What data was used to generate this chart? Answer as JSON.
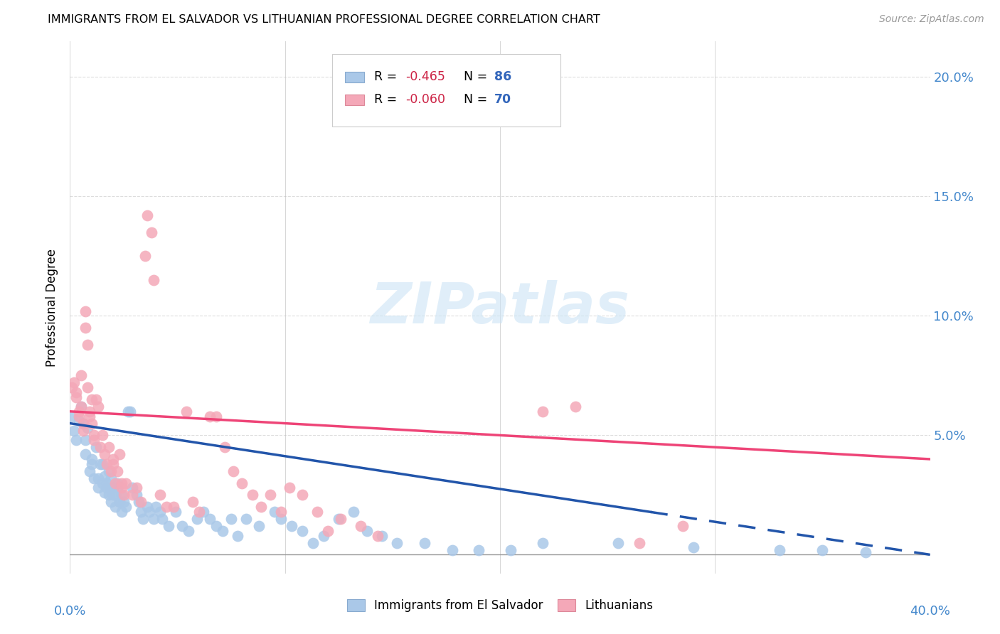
{
  "title": "IMMIGRANTS FROM EL SALVADOR VS LITHUANIAN PROFESSIONAL DEGREE CORRELATION CHART",
  "source": "Source: ZipAtlas.com",
  "ylabel": "Professional Degree",
  "legend_label1": "Immigrants from El Salvador",
  "legend_label2": "Lithuanians",
  "watermark": "ZIPatlas",
  "ytick_labels": [
    "",
    "5.0%",
    "10.0%",
    "15.0%",
    "20.0%"
  ],
  "yticks": [
    0.0,
    0.05,
    0.1,
    0.15,
    0.2
  ],
  "xmin": 0.0,
  "xmax": 0.4,
  "ymin": -0.008,
  "ymax": 0.215,
  "blue_color": "#aac8e8",
  "pink_color": "#f4a8b8",
  "blue_line_color": "#2255aa",
  "pink_line_color": "#ee4477",
  "axis_label_color": "#4488cc",
  "grid_color": "#dddddd",
  "blue_scatter": [
    [
      0.001,
      0.058
    ],
    [
      0.002,
      0.052
    ],
    [
      0.003,
      0.048
    ],
    [
      0.004,
      0.056
    ],
    [
      0.005,
      0.062
    ],
    [
      0.006,
      0.055
    ],
    [
      0.007,
      0.048
    ],
    [
      0.007,
      0.042
    ],
    [
      0.008,
      0.053
    ],
    [
      0.009,
      0.035
    ],
    [
      0.01,
      0.04
    ],
    [
      0.01,
      0.038
    ],
    [
      0.011,
      0.032
    ],
    [
      0.012,
      0.045
    ],
    [
      0.013,
      0.032
    ],
    [
      0.013,
      0.028
    ],
    [
      0.014,
      0.038
    ],
    [
      0.015,
      0.03
    ],
    [
      0.015,
      0.038
    ],
    [
      0.016,
      0.026
    ],
    [
      0.016,
      0.033
    ],
    [
      0.017,
      0.028
    ],
    [
      0.017,
      0.03
    ],
    [
      0.018,
      0.035
    ],
    [
      0.018,
      0.025
    ],
    [
      0.019,
      0.032
    ],
    [
      0.019,
      0.022
    ],
    [
      0.02,
      0.028
    ],
    [
      0.02,
      0.025
    ],
    [
      0.021,
      0.025
    ],
    [
      0.021,
      0.02
    ],
    [
      0.022,
      0.03
    ],
    [
      0.022,
      0.028
    ],
    [
      0.023,
      0.022
    ],
    [
      0.023,
      0.022
    ],
    [
      0.024,
      0.025
    ],
    [
      0.024,
      0.018
    ],
    [
      0.025,
      0.022
    ],
    [
      0.026,
      0.02
    ],
    [
      0.027,
      0.06
    ],
    [
      0.028,
      0.06
    ],
    [
      0.029,
      0.028
    ],
    [
      0.031,
      0.025
    ],
    [
      0.032,
      0.022
    ],
    [
      0.033,
      0.018
    ],
    [
      0.034,
      0.015
    ],
    [
      0.036,
      0.02
    ],
    [
      0.037,
      0.018
    ],
    [
      0.039,
      0.015
    ],
    [
      0.04,
      0.02
    ],
    [
      0.042,
      0.018
    ],
    [
      0.043,
      0.015
    ],
    [
      0.046,
      0.012
    ],
    [
      0.049,
      0.018
    ],
    [
      0.052,
      0.012
    ],
    [
      0.055,
      0.01
    ],
    [
      0.059,
      0.015
    ],
    [
      0.062,
      0.018
    ],
    [
      0.065,
      0.015
    ],
    [
      0.068,
      0.012
    ],
    [
      0.071,
      0.01
    ],
    [
      0.075,
      0.015
    ],
    [
      0.078,
      0.008
    ],
    [
      0.082,
      0.015
    ],
    [
      0.088,
      0.012
    ],
    [
      0.095,
      0.018
    ],
    [
      0.098,
      0.015
    ],
    [
      0.103,
      0.012
    ],
    [
      0.108,
      0.01
    ],
    [
      0.113,
      0.005
    ],
    [
      0.118,
      0.008
    ],
    [
      0.125,
      0.015
    ],
    [
      0.132,
      0.018
    ],
    [
      0.138,
      0.01
    ],
    [
      0.145,
      0.008
    ],
    [
      0.152,
      0.005
    ],
    [
      0.165,
      0.005
    ],
    [
      0.178,
      0.002
    ],
    [
      0.19,
      0.002
    ],
    [
      0.205,
      0.002
    ],
    [
      0.22,
      0.005
    ],
    [
      0.255,
      0.005
    ],
    [
      0.29,
      0.003
    ],
    [
      0.33,
      0.002
    ],
    [
      0.35,
      0.002
    ],
    [
      0.37,
      0.001
    ]
  ],
  "pink_scatter": [
    [
      0.001,
      0.07
    ],
    [
      0.002,
      0.072
    ],
    [
      0.003,
      0.066
    ],
    [
      0.003,
      0.068
    ],
    [
      0.004,
      0.06
    ],
    [
      0.004,
      0.058
    ],
    [
      0.005,
      0.075
    ],
    [
      0.005,
      0.062
    ],
    [
      0.006,
      0.055
    ],
    [
      0.006,
      0.052
    ],
    [
      0.007,
      0.095
    ],
    [
      0.007,
      0.102
    ],
    [
      0.008,
      0.088
    ],
    [
      0.008,
      0.07
    ],
    [
      0.009,
      0.06
    ],
    [
      0.009,
      0.058
    ],
    [
      0.01,
      0.065
    ],
    [
      0.01,
      0.055
    ],
    [
      0.011,
      0.05
    ],
    [
      0.011,
      0.048
    ],
    [
      0.012,
      0.065
    ],
    [
      0.013,
      0.062
    ],
    [
      0.014,
      0.045
    ],
    [
      0.015,
      0.05
    ],
    [
      0.016,
      0.042
    ],
    [
      0.017,
      0.038
    ],
    [
      0.018,
      0.045
    ],
    [
      0.019,
      0.035
    ],
    [
      0.02,
      0.04
    ],
    [
      0.02,
      0.038
    ],
    [
      0.021,
      0.03
    ],
    [
      0.022,
      0.035
    ],
    [
      0.023,
      0.042
    ],
    [
      0.024,
      0.03
    ],
    [
      0.024,
      0.028
    ],
    [
      0.025,
      0.025
    ],
    [
      0.026,
      0.03
    ],
    [
      0.029,
      0.025
    ],
    [
      0.031,
      0.028
    ],
    [
      0.033,
      0.022
    ],
    [
      0.035,
      0.125
    ],
    [
      0.036,
      0.142
    ],
    [
      0.038,
      0.135
    ],
    [
      0.039,
      0.115
    ],
    [
      0.042,
      0.025
    ],
    [
      0.045,
      0.02
    ],
    [
      0.048,
      0.02
    ],
    [
      0.054,
      0.06
    ],
    [
      0.057,
      0.022
    ],
    [
      0.06,
      0.018
    ],
    [
      0.065,
      0.058
    ],
    [
      0.068,
      0.058
    ],
    [
      0.072,
      0.045
    ],
    [
      0.076,
      0.035
    ],
    [
      0.08,
      0.03
    ],
    [
      0.085,
      0.025
    ],
    [
      0.089,
      0.02
    ],
    [
      0.093,
      0.025
    ],
    [
      0.098,
      0.018
    ],
    [
      0.102,
      0.028
    ],
    [
      0.108,
      0.025
    ],
    [
      0.115,
      0.018
    ],
    [
      0.12,
      0.01
    ],
    [
      0.126,
      0.015
    ],
    [
      0.135,
      0.012
    ],
    [
      0.143,
      0.008
    ],
    [
      0.22,
      0.06
    ],
    [
      0.235,
      0.062
    ],
    [
      0.265,
      0.005
    ],
    [
      0.285,
      0.012
    ]
  ],
  "blue_trend_x": [
    0.0,
    0.4
  ],
  "blue_trend_y": [
    0.055,
    0.0
  ],
  "blue_dashed_from": 0.27,
  "pink_trend_x": [
    0.0,
    0.4
  ],
  "pink_trend_y": [
    0.06,
    0.04
  ]
}
